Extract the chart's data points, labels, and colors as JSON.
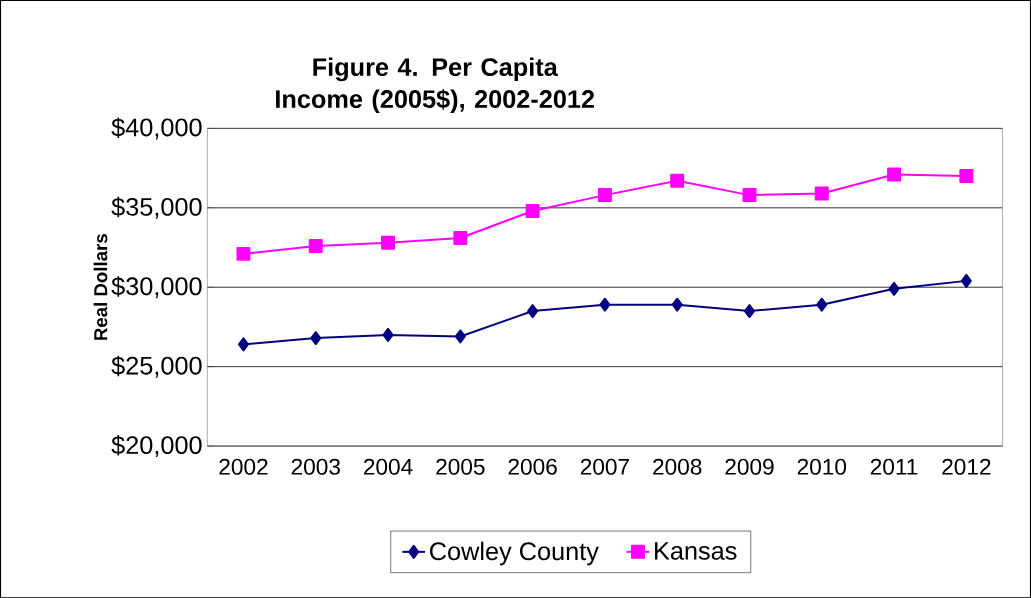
{
  "chart_data": {
    "type": "line",
    "title": "Figure 4. Per Capita Income (2005$), 2002-2012",
    "ylabel": "Real Dollars",
    "categories": [
      "2002",
      "2003",
      "2004",
      "2005",
      "2006",
      "2007",
      "2008",
      "2009",
      "2010",
      "2011",
      "2012"
    ],
    "series": [
      {
        "name": "Cowley County",
        "color": "#000080",
        "marker": "diamond",
        "values": [
          26400,
          26800,
          27000,
          26900,
          28500,
          28900,
          28900,
          28500,
          28900,
          29900,
          30400
        ]
      },
      {
        "name": "Kansas",
        "color": "#ff00ff",
        "marker": "square",
        "values": [
          32100,
          32600,
          32800,
          33100,
          34800,
          35800,
          36700,
          35800,
          35900,
          37100,
          37000
        ]
      }
    ],
    "ylim": [
      20000,
      40000
    ],
    "yticks": [
      {
        "value": 20000,
        "label": "$20,000"
      },
      {
        "value": 25000,
        "label": "$25,000"
      },
      {
        "value": 30000,
        "label": "$30,000"
      },
      {
        "value": 35000,
        "label": "$35,000"
      },
      {
        "value": 40000,
        "label": "$40,000"
      }
    ],
    "grid": "y",
    "legend": "bottom"
  }
}
